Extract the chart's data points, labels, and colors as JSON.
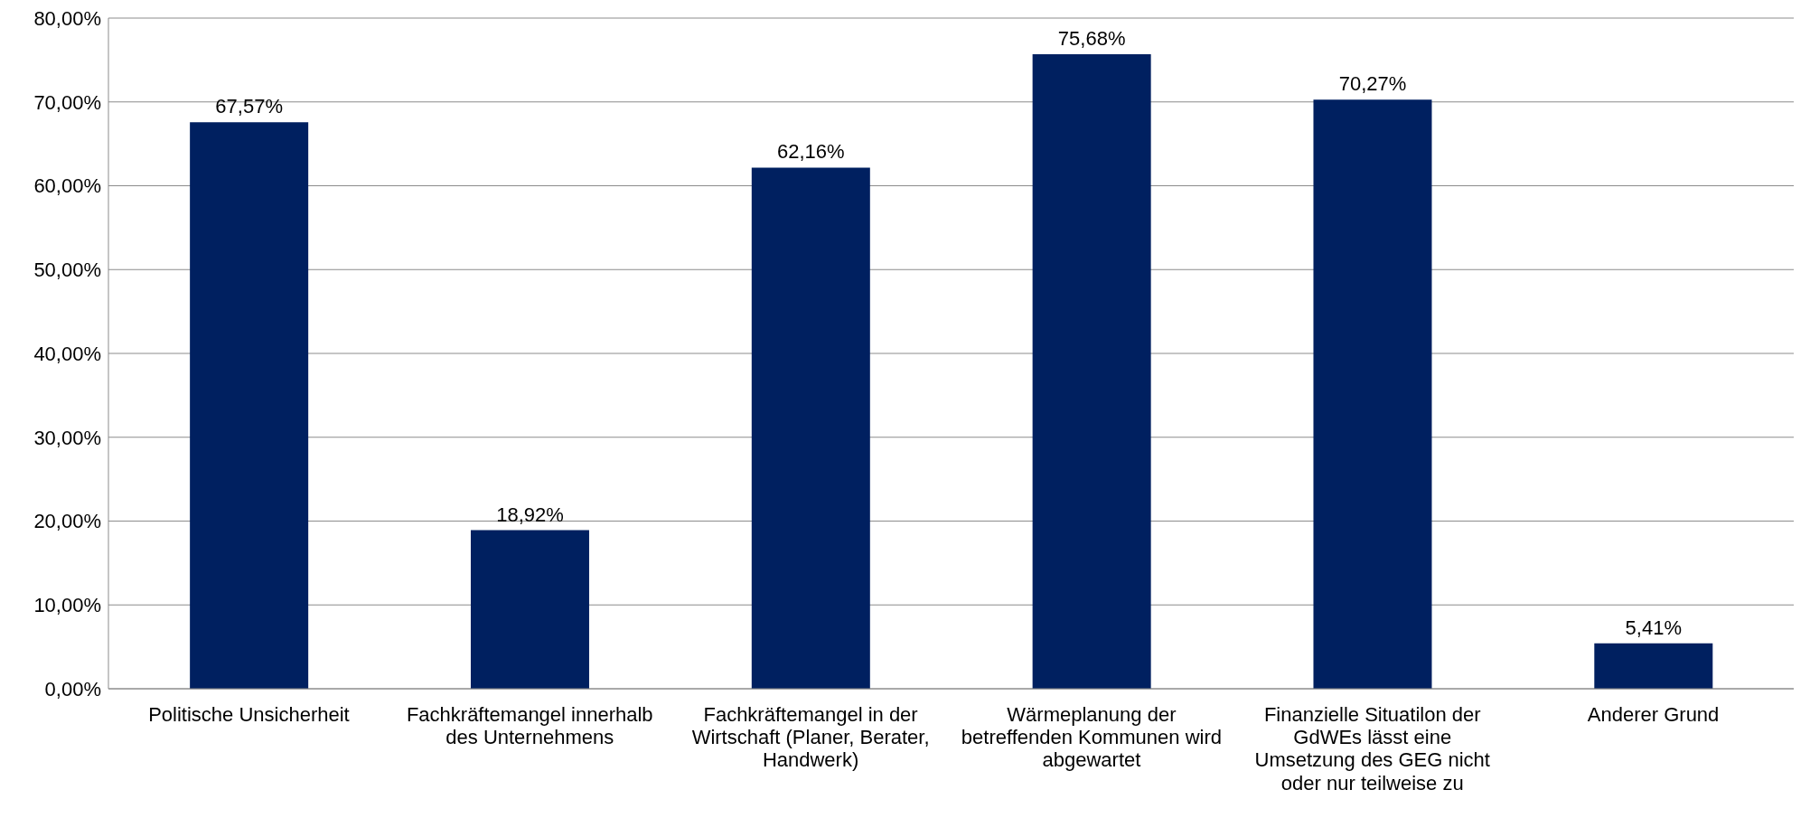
{
  "chart_data": {
    "type": "bar",
    "categories": [
      "Politische Unsicherheit",
      "Fachkräftemangel innerhalb des Unternehmens",
      "Fachkräftemangel in der Wirtschaft (Planer, Berater, Handwerk)",
      "Wärmeplanung der betreffenden Kommunen wird abgewartet",
      "Finanzielle Situatilon der GdWEs lässt eine Umsetzung des GEG nicht oder nur teilweise zu",
      "Anderer Grund"
    ],
    "values": [
      67.57,
      18.92,
      62.16,
      75.68,
      70.27,
      5.41
    ],
    "value_labels": [
      "67,57%",
      "18,92%",
      "62,16%",
      "75,68%",
      "70,27%",
      "5,41%"
    ],
    "color": "#002060",
    "ylim": [
      0,
      80
    ],
    "yticks": [
      {
        "value": 0,
        "label": "0,00%"
      },
      {
        "value": 10,
        "label": "10,00%"
      },
      {
        "value": 20,
        "label": "20,00%"
      },
      {
        "value": 30,
        "label": "30,00%"
      },
      {
        "value": 40,
        "label": "40,00%"
      },
      {
        "value": 50,
        "label": "50,00%"
      },
      {
        "value": 60,
        "label": "60,00%"
      },
      {
        "value": 70,
        "label": "70,00%"
      },
      {
        "value": 80,
        "label": "80,00%"
      }
    ],
    "grid": "y"
  }
}
